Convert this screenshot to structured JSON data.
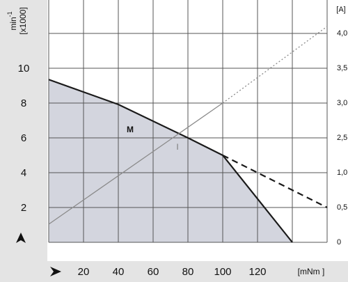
{
  "chart_data": {
    "type": "line",
    "x_label": "[mNm ]",
    "y_unit": "min",
    "y_unit_exp": "-1",
    "y_scale": "[x1000]",
    "y2_label": "[A]",
    "xlim": [
      0,
      160
    ],
    "xticks": [
      20,
      40,
      60,
      80,
      100,
      120
    ],
    "ylim": [
      0,
      13.92
    ],
    "yticks": [
      2,
      4,
      6,
      8,
      10
    ],
    "y2ticks": [
      0,
      {
        "value": 0.5,
        "label": "0,5"
      },
      {
        "value": 1.0,
        "label": "1,0"
      },
      {
        "value": 2.5,
        "label": "2,5"
      },
      {
        "value": 3.0,
        "label": "3,0"
      },
      {
        "value": 3.5,
        "label": "3,5"
      },
      {
        "value": 4.0,
        "label": "4,0"
      }
    ],
    "grid": true,
    "series": [
      {
        "name": "M",
        "color": "#1a1a1a",
        "fill": "#d3d5de",
        "x": [
          0,
          40,
          80,
          100,
          140
        ],
        "values": [
          9.35,
          7.92,
          6.0,
          5.0,
          0
        ]
      },
      {
        "color": "#1a1a1a",
        "dashed": true,
        "x": [
          100,
          160
        ],
        "values": [
          5.0,
          2.0
        ]
      },
      {
        "name": "I",
        "axis": "y2",
        "color": "#8a8a8a",
        "x": [
          0,
          100
        ],
        "values": [
          0.26,
          3.0
        ]
      },
      {
        "axis": "y2",
        "color": "#8a8a8a",
        "dotted": true,
        "x": [
          100,
          160
        ],
        "values": [
          3.0,
          4.1
        ]
      }
    ]
  }
}
